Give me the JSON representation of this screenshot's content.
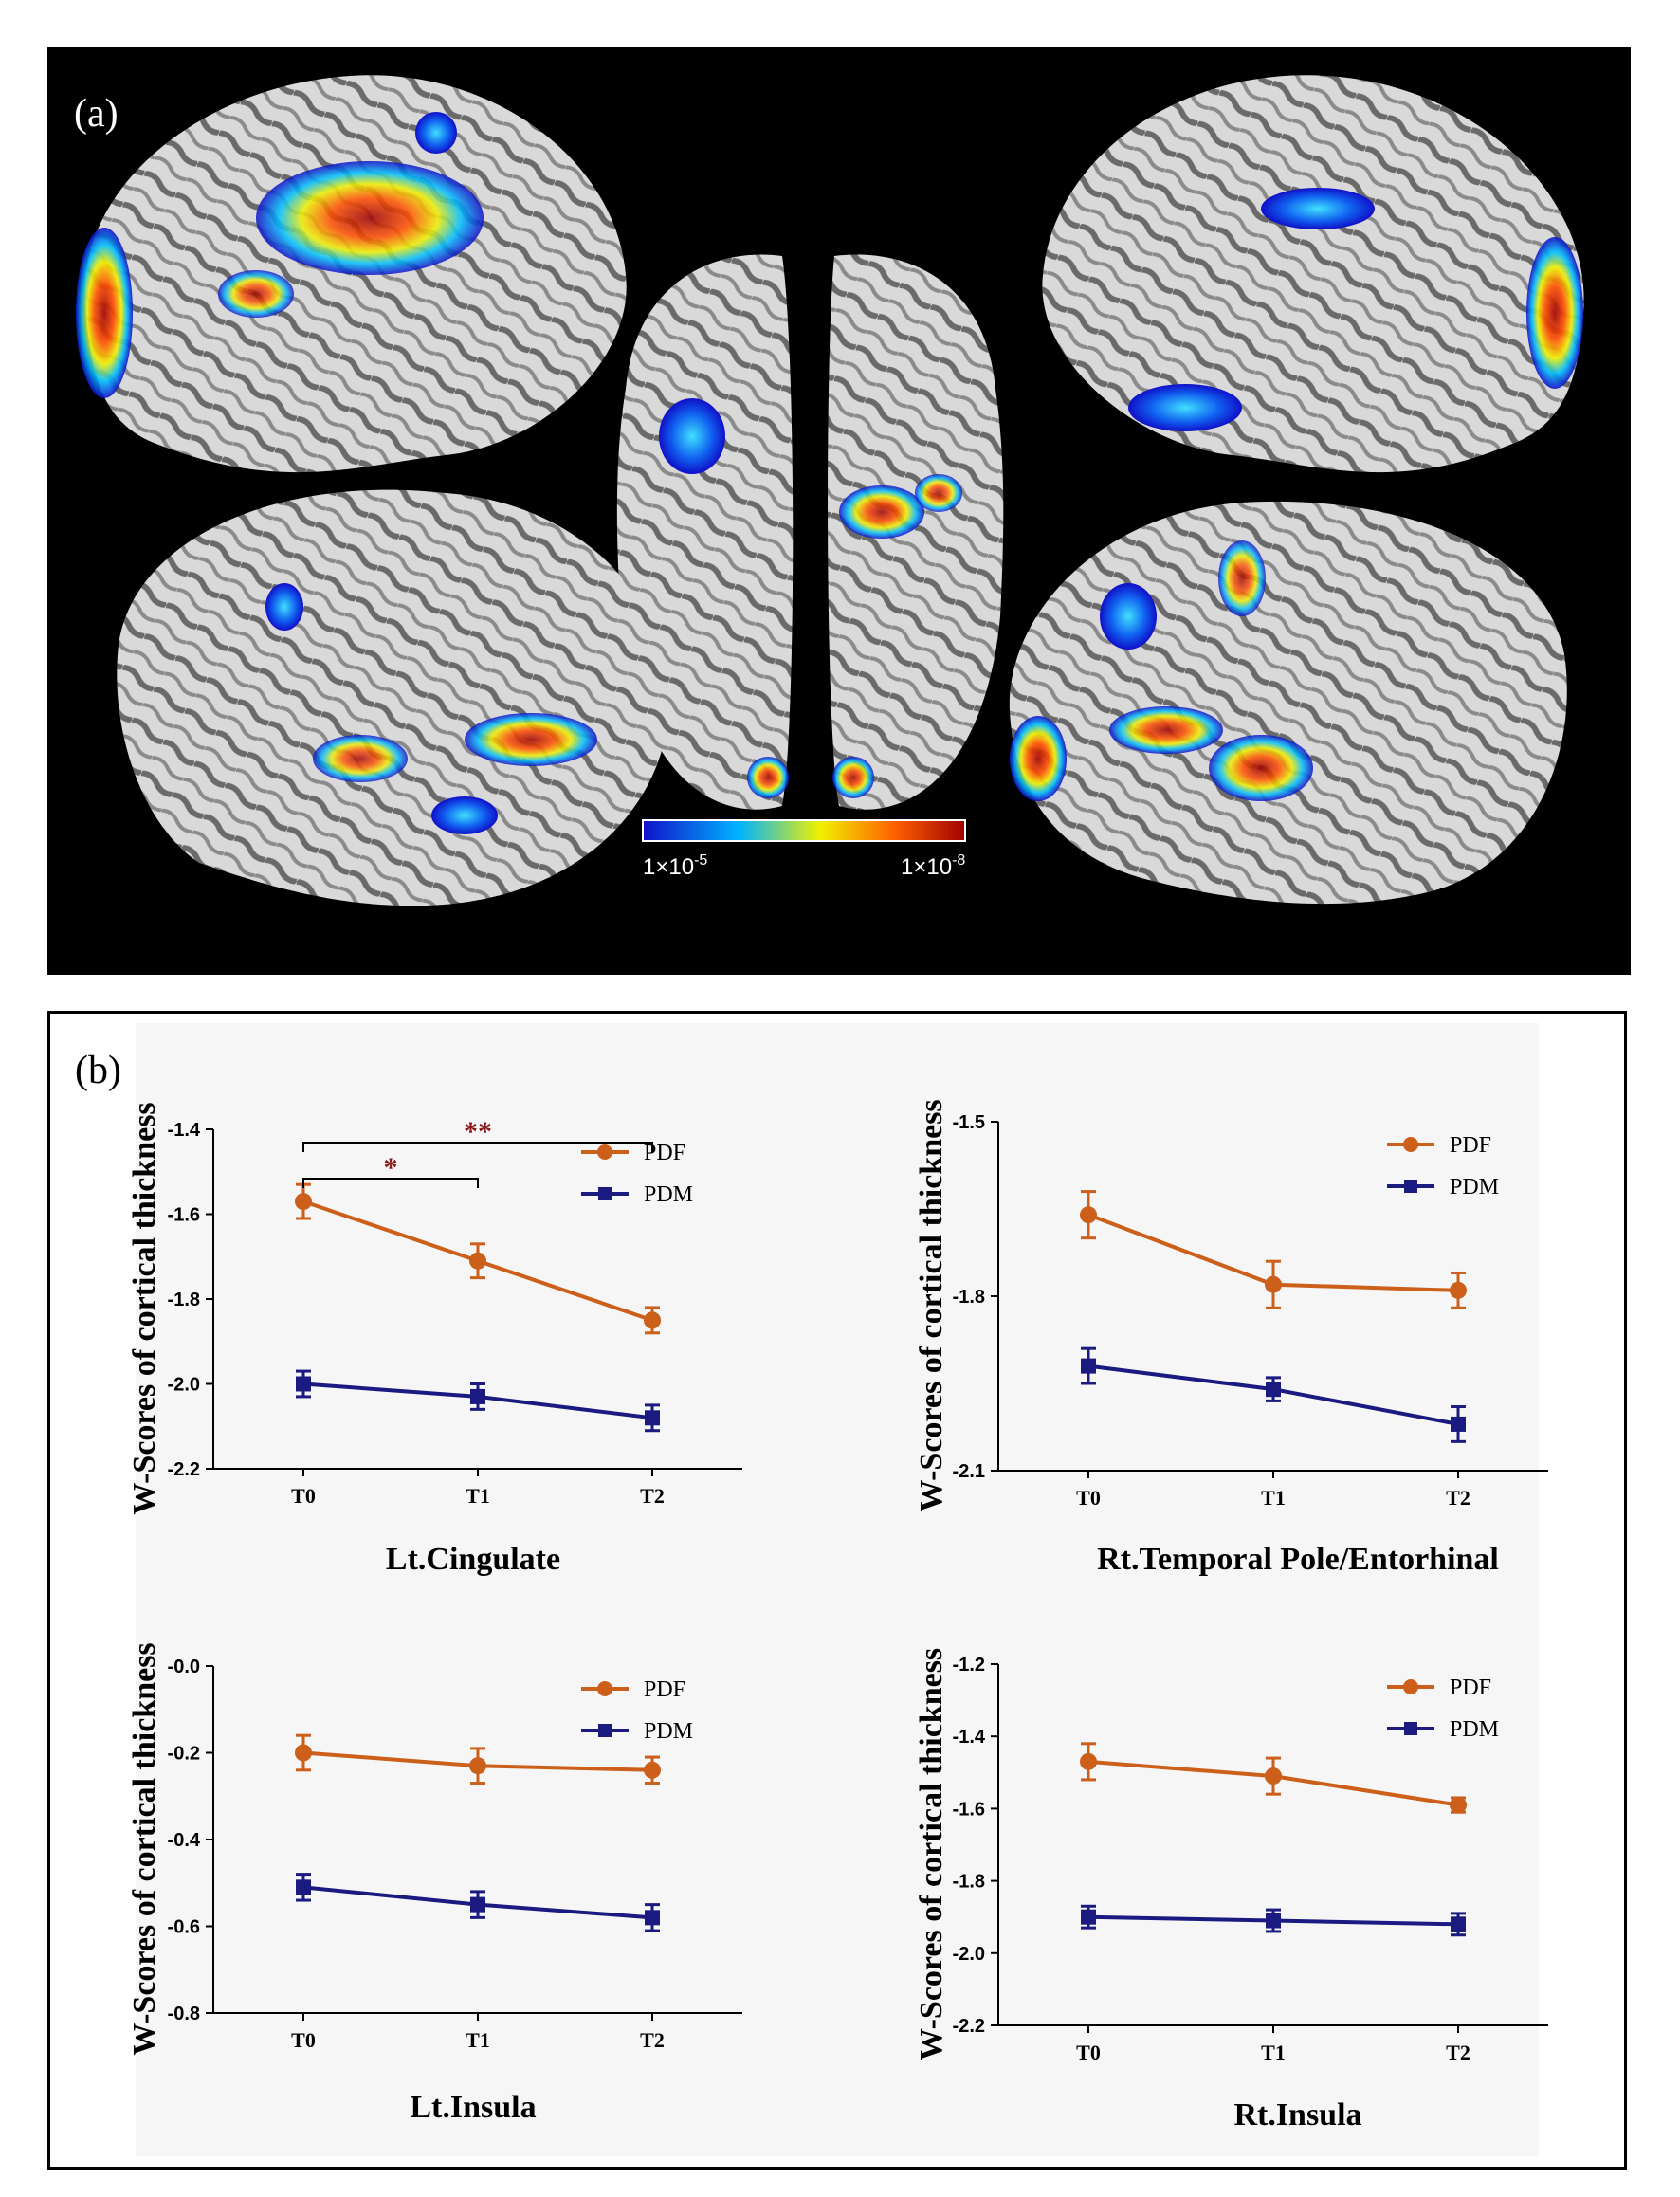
{
  "panel_a": {
    "label": "(a)",
    "colorbar": {
      "min_label": "1×10",
      "min_exp": "-5",
      "max_label": "1×10",
      "max_exp": "-8",
      "colors": [
        "#1010c8",
        "#00b4ff",
        "#f0f000",
        "#ff6000",
        "#a00000"
      ]
    }
  },
  "panel_b": {
    "label": "(b)"
  },
  "colors": {
    "PDF": "#cc5f1a",
    "PDM": "#1a1a80",
    "significance": "#8b1a1a"
  },
  "chart_data": [
    {
      "type": "line",
      "title": "Lt.Cingulate",
      "ylabel": "W-Scores of cortical thickness",
      "categories": [
        "T0",
        "T1",
        "T2"
      ],
      "ylim": [
        -2.2,
        -1.4
      ],
      "yticks": [
        "-1.4",
        "-1.6",
        "-1.8",
        "-2.0",
        "-2.2"
      ],
      "series": [
        {
          "name": "PDF",
          "values": [
            -1.57,
            -1.71,
            -1.85
          ],
          "error": [
            0.04,
            0.04,
            0.03
          ]
        },
        {
          "name": "PDM",
          "values": [
            -2.0,
            -2.03,
            -2.08
          ],
          "error": [
            0.03,
            0.03,
            0.03
          ]
        }
      ],
      "annotations": [
        {
          "from": "T0",
          "to": "T1",
          "text": "*"
        },
        {
          "from": "T0",
          "to": "T2",
          "text": "**"
        }
      ],
      "legend": "upper right"
    },
    {
      "type": "line",
      "title": "Rt.Temporal Pole/Entorhinal",
      "ylabel": "W-Scores of cortical thickness",
      "categories": [
        "T0",
        "T1",
        "T2"
      ],
      "ylim": [
        -2.1,
        -1.5
      ],
      "yticks": [
        "-1.5",
        "-1.8",
        "-2.1"
      ],
      "series": [
        {
          "name": "PDF",
          "values": [
            -1.66,
            -1.78,
            -1.79
          ],
          "error": [
            0.04,
            0.04,
            0.03
          ]
        },
        {
          "name": "PDM",
          "values": [
            -1.92,
            -1.96,
            -2.02
          ],
          "error": [
            0.03,
            0.02,
            0.03
          ]
        }
      ],
      "legend": "upper right"
    },
    {
      "type": "line",
      "title": "Lt.Insula",
      "ylabel": "W-Scores of cortical thickness",
      "categories": [
        "T0",
        "T1",
        "T2"
      ],
      "ylim": [
        -0.8,
        0.0
      ],
      "yticks": [
        "-0.0",
        "-0.2",
        "-0.4",
        "-0.6",
        "-0.8"
      ],
      "series": [
        {
          "name": "PDF",
          "values": [
            -0.2,
            -0.23,
            -0.24
          ],
          "error": [
            0.04,
            0.04,
            0.03
          ]
        },
        {
          "name": "PDM",
          "values": [
            -0.51,
            -0.55,
            -0.58
          ],
          "error": [
            0.03,
            0.03,
            0.03
          ]
        }
      ],
      "legend": "upper right"
    },
    {
      "type": "line",
      "title": "Rt.Insula",
      "ylabel": "W-Scores of cortical thickness",
      "categories": [
        "T0",
        "T1",
        "T2"
      ],
      "ylim": [
        -2.2,
        -1.2
      ],
      "yticks": [
        "-1.2",
        "-1.4",
        "-1.6",
        "-1.8",
        "-2.0",
        "-2.2"
      ],
      "series": [
        {
          "name": "PDF",
          "values": [
            -1.47,
            -1.51,
            -1.59
          ],
          "error": [
            0.05,
            0.05,
            0.02
          ]
        },
        {
          "name": "PDM",
          "values": [
            -1.9,
            -1.91,
            -1.92
          ],
          "error": [
            0.03,
            0.03,
            0.03
          ]
        }
      ],
      "legend": "upper right"
    }
  ]
}
